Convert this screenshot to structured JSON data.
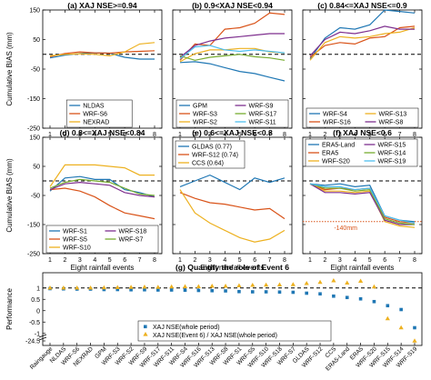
{
  "chart_data": [
    {
      "panel": "a",
      "type": "line",
      "title": "(a) XAJ NSE>=0.94",
      "x": [
        1,
        2,
        3,
        4,
        5,
        6,
        7,
        8
      ],
      "ylim": [
        -250,
        150
      ],
      "ylabel": "Cumulative BIAS (mm)",
      "xlabel": "",
      "yticks": [
        "-250",
        "-150",
        "-50",
        "50",
        "150"
      ],
      "xticks": [],
      "reference_line": 0,
      "legend_position": "lower-center",
      "series": [
        {
          "name": "NLDAS",
          "color": "#1f77b4",
          "values": [
            -12,
            -3,
            3,
            5,
            4,
            -10,
            -16,
            -16
          ]
        },
        {
          "name": "WRF-S6",
          "color": "#d95319",
          "values": [
            -8,
            3,
            8,
            5,
            4,
            8,
            10,
            12
          ]
        },
        {
          "name": "NEXRAD",
          "color": "#edb120",
          "values": [
            -5,
            0,
            2,
            0,
            -5,
            8,
            35,
            40
          ]
        }
      ]
    },
    {
      "panel": "b",
      "type": "line",
      "title": "(b) 0.9<XAJ NSE<0.94",
      "x": [
        1,
        2,
        3,
        4,
        5,
        6,
        7,
        8
      ],
      "ylim": [
        -250,
        150
      ],
      "reference_line": 0,
      "legend_position": "lower-center",
      "series": [
        {
          "name": "GPM",
          "color": "#1f77b4",
          "values": [
            -28,
            -25,
            -32,
            -45,
            -58,
            -65,
            -78,
            -90
          ]
        },
        {
          "name": "WRF-S3",
          "color": "#d95319",
          "values": [
            -20,
            35,
            30,
            85,
            90,
            105,
            140,
            135
          ]
        },
        {
          "name": "WRF-S2",
          "color": "#edb120",
          "values": [
            -25,
            2,
            15,
            15,
            20,
            20,
            8,
            5
          ]
        },
        {
          "name": "WRF-S9",
          "color": "#7e2f8e",
          "values": [
            -10,
            30,
            45,
            55,
            60,
            65,
            70,
            70
          ]
        },
        {
          "name": "WRF-S17",
          "color": "#77ac30",
          "values": [
            -5,
            -20,
            -10,
            -5,
            0,
            -8,
            -12,
            -20
          ]
        },
        {
          "name": "WRF-S11",
          "color": "#4dbeee",
          "values": [
            -15,
            25,
            30,
            15,
            10,
            15,
            10,
            5
          ]
        }
      ]
    },
    {
      "panel": "c",
      "type": "line",
      "title": "(c) 0.84<=XAJ NSE<=0.9",
      "x": [
        1,
        2,
        3,
        4,
        5,
        6,
        7,
        8
      ],
      "ylim": [
        -250,
        150
      ],
      "reference_line": 0,
      "legend_position": "lower-center",
      "series": [
        {
          "name": "WRF-S4",
          "color": "#1f77b4",
          "values": [
            -15,
            55,
            90,
            85,
            100,
            150,
            145,
            140
          ]
        },
        {
          "name": "WRF-S16",
          "color": "#d95319",
          "values": [
            -10,
            30,
            40,
            35,
            55,
            60,
            90,
            95
          ]
        },
        {
          "name": "WRF-S13",
          "color": "#edb120",
          "values": [
            -20,
            40,
            60,
            55,
            60,
            70,
            75,
            90
          ]
        },
        {
          "name": "WRF-S8",
          "color": "#7e2f8e",
          "values": [
            -5,
            50,
            75,
            70,
            80,
            95,
            85,
            85
          ]
        }
      ]
    },
    {
      "panel": "d",
      "type": "line",
      "title": "(d) 0.8<=XAJ NSE<0.84",
      "x": [
        1,
        2,
        3,
        4,
        5,
        6,
        7,
        8
      ],
      "ylim": [
        -250,
        150
      ],
      "ylabel": "Cumulative BIAS (mm)",
      "xlabel": "",
      "yticks": [
        "-250",
        "-150",
        "-50",
        "50",
        "150"
      ],
      "reference_line": 0,
      "legend_position": "lower-center",
      "series": [
        {
          "name": "WRF-S1",
          "color": "#1f77b4",
          "values": [
            -35,
            10,
            15,
            5,
            5,
            -30,
            -40,
            -55
          ]
        },
        {
          "name": "WRF-S5",
          "color": "#d95319",
          "values": [
            -30,
            -25,
            -35,
            -55,
            -85,
            -110,
            -120,
            -130
          ]
        },
        {
          "name": "WRF-S10",
          "color": "#edb120",
          "values": [
            -20,
            55,
            55,
            55,
            50,
            45,
            20,
            20
          ]
        },
        {
          "name": "WRF-S18",
          "color": "#7e2f8e",
          "values": [
            -30,
            -10,
            -5,
            -10,
            -15,
            -40,
            -50,
            -55
          ]
        },
        {
          "name": "WRF-S7",
          "color": "#77ac30",
          "values": [
            -25,
            -5,
            5,
            0,
            -5,
            -25,
            -45,
            -50
          ]
        }
      ]
    },
    {
      "panel": "e",
      "type": "line",
      "title": "(e) 0.6<=XAJ NSE<0.8",
      "x": [
        1,
        2,
        3,
        4,
        5,
        6,
        7,
        8
      ],
      "ylim": [
        -250,
        150
      ],
      "reference_line": 0,
      "legend_position": "top-left",
      "series": [
        {
          "name": "GLDAS (0.77)",
          "color": "#1f77b4",
          "values": [
            -20,
            0,
            20,
            -5,
            -30,
            10,
            -5,
            10
          ]
        },
        {
          "name": "WRF-S12 (0.74)",
          "color": "#d95319",
          "values": [
            -40,
            -60,
            -75,
            -80,
            -90,
            -100,
            -95,
            -130
          ]
        },
        {
          "name": "CCS (0.64)",
          "color": "#edb120",
          "values": [
            -30,
            -110,
            -145,
            -170,
            -195,
            -210,
            -200,
            -170
          ]
        }
      ]
    },
    {
      "panel": "f",
      "type": "line",
      "title": "(f) XAJ NSE<0.6",
      "x": [
        1,
        2,
        3,
        4,
        5,
        6,
        7,
        8
      ],
      "ylim": [
        -250,
        150
      ],
      "reference_line": 0,
      "threshold_line": -140,
      "threshold_label": "-140mm",
      "legend_position": "top",
      "series": [
        {
          "name": "ERA5-Land",
          "color": "#1f77b4",
          "values": [
            -10,
            -15,
            -10,
            -20,
            -15,
            -120,
            -135,
            -140
          ]
        },
        {
          "name": "ERA5",
          "color": "#d95319",
          "values": [
            -10,
            -30,
            -25,
            -30,
            -25,
            -125,
            -140,
            -145
          ]
        },
        {
          "name": "WRF-S20",
          "color": "#edb120",
          "values": [
            -10,
            -35,
            -35,
            -40,
            -35,
            -140,
            -155,
            -160
          ]
        },
        {
          "name": "WRF-S15",
          "color": "#7e2f8e",
          "values": [
            -10,
            -40,
            -40,
            -45,
            -40,
            -135,
            -150,
            -150
          ]
        },
        {
          "name": "WRF-S14",
          "color": "#77ac30",
          "values": [
            -10,
            -25,
            -25,
            -35,
            -30,
            -130,
            -145,
            -150
          ]
        },
        {
          "name": "WRF-S19",
          "color": "#4dbeee",
          "values": [
            -10,
            -20,
            -20,
            -30,
            -25,
            -120,
            -135,
            -145
          ]
        }
      ]
    },
    {
      "panel": "g",
      "type": "scatter",
      "title": "(g) Quantify the role of Event 6",
      "ylabel": "Performance",
      "panel_xlabel": "Eight rainfall events",
      "yticks": [
        "1",
        "0.5",
        "0",
        "-0.5",
        "-1",
        "-24.5"
      ],
      "axis_break": true,
      "reference_line": 1,
      "legend_position": "bottom-center",
      "categories": [
        "Raingauge",
        "NLDAS",
        "WRF-S6",
        "NEXRAD",
        "GPM",
        "WRF-S3",
        "WRF-S2",
        "WRF-S9",
        "WRF-S17",
        "WRF-S11",
        "WRF-S4",
        "WRF-S16",
        "WRF-S13",
        "WRF-S8",
        "WRF-S1",
        "WRF-S5",
        "WRF-S10",
        "WRF-S18",
        "WRF-S7",
        "GLDAS",
        "WRF-S12",
        "CCS",
        "ERA5-Land",
        "ERA5",
        "WRF-S20",
        "WRF-S15",
        "WRF-S14",
        "WRF-S19"
      ],
      "series": [
        {
          "name": "XAJ NSE(whole period)",
          "marker": "square",
          "color": "#1f77b4",
          "values": [
            0.97,
            0.96,
            0.95,
            0.95,
            0.93,
            0.93,
            0.92,
            0.92,
            0.91,
            0.91,
            0.9,
            0.89,
            0.88,
            0.87,
            0.84,
            0.83,
            0.83,
            0.82,
            0.81,
            0.77,
            0.74,
            0.64,
            0.58,
            0.52,
            0.4,
            0.22,
            0.05,
            -0.75
          ]
        },
        {
          "name": "XAJ NSE(Event 6) / XAJ NSE(whole period)",
          "marker": "triangle",
          "color": "#edb120",
          "values": [
            1.0,
            1.0,
            1.0,
            1.0,
            1.01,
            1.02,
            1.03,
            1.04,
            1.03,
            1.05,
            1.06,
            1.06,
            1.08,
            1.08,
            1.1,
            1.12,
            1.13,
            1.14,
            1.15,
            1.2,
            1.25,
            1.32,
            1.22,
            1.3,
            1.05,
            -0.35,
            -0.75,
            -24.5
          ]
        }
      ]
    }
  ]
}
